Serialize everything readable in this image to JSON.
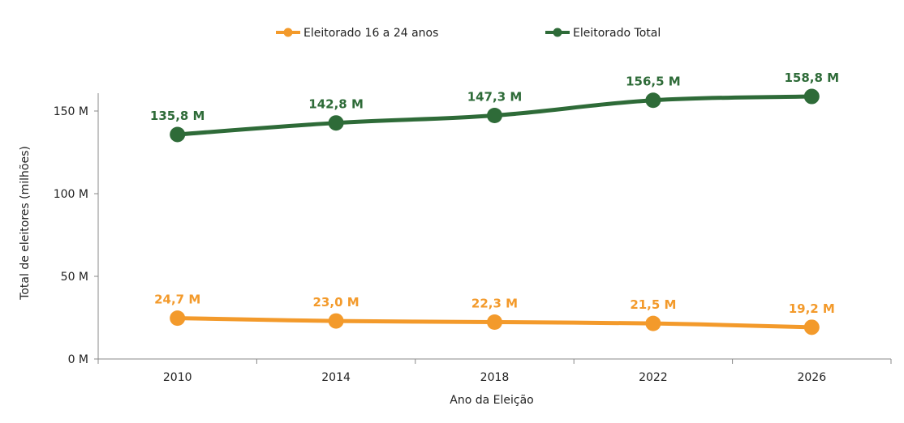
{
  "chart_data": {
    "type": "line",
    "title": "",
    "xlabel": "Ano da Eleição",
    "ylabel": "Total de eleitores (milhões)",
    "categories": [
      "2010",
      "2014",
      "2018",
      "2022",
      "2026"
    ],
    "ylim": [
      0,
      160
    ],
    "yticks": [
      0,
      50,
      100,
      150
    ],
    "ytick_labels": [
      "0 M",
      "50 M",
      "100 M",
      "150 M"
    ],
    "grid": false,
    "legend_position": "top-center",
    "series": [
      {
        "name": "Eleitorado 16 a 24 anos",
        "color": "#F39A2B",
        "values": [
          24.7,
          23.0,
          22.3,
          21.5,
          19.2
        ],
        "labels": [
          "24,7 M",
          "23,0 M",
          "22,3 M",
          "21,5 M",
          "19,2 M"
        ]
      },
      {
        "name": "Eleitorado Total",
        "color": "#2E6B38",
        "values": [
          135.8,
          142.8,
          147.3,
          156.5,
          158.8
        ],
        "labels": [
          "135,8 M",
          "142,8 M",
          "147,3 M",
          "156,5 M",
          "158,8 M"
        ]
      }
    ]
  }
}
